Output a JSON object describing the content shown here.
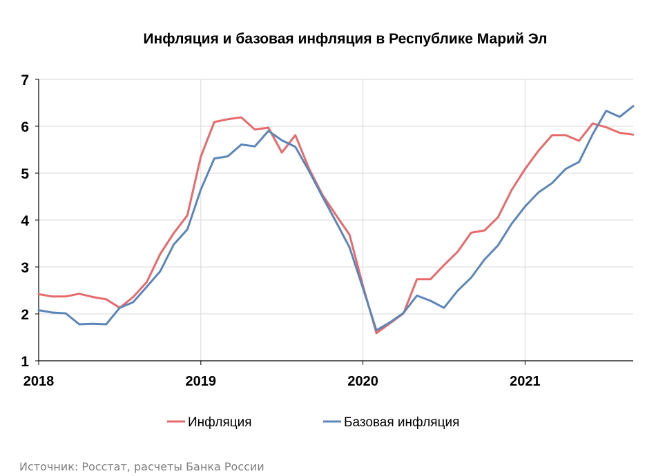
{
  "chart_data": {
    "type": "line",
    "title": "Инфляция и базовая инфляция в Республике Марий Эл",
    "source": "Источник: Росстат, расчеты Банка России",
    "ylim": [
      1,
      7
    ],
    "yticks": [
      "1",
      "2",
      "3",
      "4",
      "5",
      "6",
      "7"
    ],
    "xlim": [
      2018,
      2021.667
    ],
    "xticks": [
      {
        "value": 2018,
        "label": "2018"
      },
      {
        "value": 2019,
        "label": "2019"
      },
      {
        "value": 2020,
        "label": "2020"
      },
      {
        "value": 2021,
        "label": "2021"
      }
    ],
    "grid": true,
    "legend_position": "bottom",
    "x": [
      2018.0,
      2018.083,
      2018.167,
      2018.25,
      2018.333,
      2018.417,
      2018.5,
      2018.583,
      2018.667,
      2018.75,
      2018.833,
      2018.917,
      2019.0,
      2019.083,
      2019.167,
      2019.25,
      2019.333,
      2019.417,
      2019.5,
      2019.583,
      2019.667,
      2019.75,
      2019.833,
      2019.917,
      2020.0,
      2020.083,
      2020.167,
      2020.25,
      2020.333,
      2020.417,
      2020.5,
      2020.583,
      2020.667,
      2020.75,
      2020.833,
      2020.917,
      2021.0,
      2021.083,
      2021.167,
      2021.25,
      2021.333,
      2021.417,
      2021.5,
      2021.583,
      2021.667
    ],
    "series": [
      {
        "name": "Инфляция",
        "color": "#e8696b",
        "values": [
          2.42,
          2.37,
          2.37,
          2.43,
          2.36,
          2.31,
          2.13,
          2.36,
          2.68,
          3.28,
          3.72,
          4.1,
          5.35,
          6.09,
          6.15,
          6.19,
          5.93,
          5.97,
          5.44,
          5.81,
          5.1,
          4.54,
          4.11,
          3.69,
          2.6,
          1.59,
          1.8,
          2.01,
          2.74,
          2.74,
          3.04,
          3.32,
          3.73,
          3.78,
          4.06,
          4.64,
          5.09,
          5.48,
          5.81,
          5.81,
          5.69,
          6.06,
          5.98,
          5.86,
          5.82
        ]
      },
      {
        "name": "Базовая инфляция",
        "color": "#5b86b9",
        "values": [
          2.08,
          2.03,
          2.01,
          1.78,
          1.79,
          1.78,
          2.13,
          2.25,
          2.58,
          2.91,
          3.48,
          3.8,
          4.65,
          5.31,
          5.36,
          5.61,
          5.57,
          5.9,
          5.7,
          5.56,
          5.05,
          4.5,
          3.97,
          3.42,
          2.55,
          1.65,
          1.82,
          2.02,
          2.39,
          2.28,
          2.13,
          2.49,
          2.77,
          3.16,
          3.46,
          3.92,
          4.29,
          4.59,
          4.79,
          5.09,
          5.24,
          5.83,
          6.33,
          6.2,
          6.43
        ]
      }
    ]
  }
}
